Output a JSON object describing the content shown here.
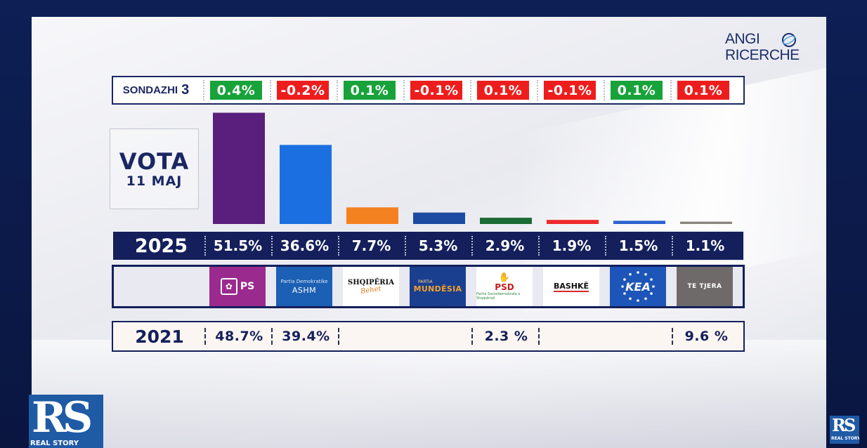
{
  "brand": {
    "pollster_line1": "ANGI",
    "pollster_line2": "RICERCHE",
    "channel_mark": "RS",
    "channel_name": "REAL STORY"
  },
  "colors": {
    "positive": "#18a23a",
    "negative": "#ee1d1d"
  },
  "poll": {
    "label": "SONDAZHI",
    "number": "3",
    "changes": [
      "0.4%",
      "-0.2%",
      "0.1%",
      "-0.1%",
      "0.1%",
      "-0.1%",
      "0.1%",
      "0.1%"
    ],
    "change_colors": [
      "positive",
      "negative",
      "positive",
      "negative",
      "negative",
      "negative",
      "positive",
      "negative"
    ]
  },
  "vote_box": {
    "line1": "VOTA",
    "line2": "11 MAJ"
  },
  "parties": [
    {
      "name": "PS",
      "icon": "ps-rose-icon"
    },
    {
      "small": "Partia Demokratike",
      "name": "ASHM"
    },
    {
      "name": "SHQIPËRIA",
      "sub": "Behet"
    },
    {
      "small": "PARTIA",
      "name": "MUNDËSIA"
    },
    {
      "name": "PSD",
      "small": "Partia Socialdemokrate e Shqipërisë",
      "icon": "psd-hands-icon"
    },
    {
      "name": "BASHKË"
    },
    {
      "name": "KEA",
      "icon": "star-ring-icon"
    },
    {
      "name": "TE TJERA"
    }
  ],
  "chart_data": {
    "type": "bar",
    "title": "",
    "series": [
      {
        "name": "2025",
        "values": [
          51.5,
          36.6,
          7.7,
          5.3,
          2.9,
          1.9,
          1.5,
          1.1
        ],
        "labels": [
          "51.5%",
          "36.6%",
          "7.7%",
          "5.3%",
          "2.9%",
          "1.9%",
          "1.5%",
          "1.1%"
        ]
      }
    ],
    "bar_colors": [
      "#5a1f7d",
      "#1c6fe0",
      "#f4811f",
      "#1c4aa0",
      "#1b6b36",
      "#ee2b2b",
      "#2b62d0",
      "#8a8682"
    ],
    "ylim": [
      0,
      52
    ],
    "grid": false,
    "comparison_2021": {
      "label": "2021",
      "values": [
        "48.7%",
        "39.4%",
        "",
        "",
        "2.3 %",
        "",
        "",
        "9.6 %"
      ]
    }
  }
}
